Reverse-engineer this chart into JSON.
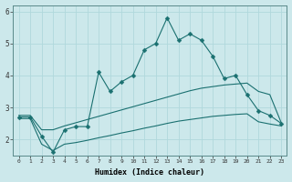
{
  "xlabel": "Humidex (Indice chaleur)",
  "background_color": "#cce8eb",
  "grid_color": "#b0d8dc",
  "line_color": "#1a7070",
  "xlim": [
    -0.5,
    23.5
  ],
  "ylim": [
    1.5,
    6.2
  ],
  "yticks": [
    2,
    3,
    4,
    5,
    6
  ],
  "xticks": [
    0,
    1,
    2,
    3,
    4,
    5,
    6,
    7,
    8,
    9,
    10,
    11,
    12,
    13,
    14,
    15,
    16,
    17,
    18,
    19,
    20,
    21,
    22,
    23
  ],
  "main_x": [
    0,
    1,
    2,
    3,
    4,
    5,
    6,
    7,
    8,
    9,
    10,
    11,
    12,
    13,
    14,
    15,
    16,
    17,
    18,
    19,
    20,
    21,
    22,
    23
  ],
  "main_y": [
    2.7,
    2.7,
    2.1,
    1.6,
    2.3,
    2.4,
    2.4,
    4.1,
    3.5,
    3.8,
    4.0,
    4.8,
    5.0,
    5.8,
    5.1,
    5.3,
    5.1,
    4.6,
    3.9,
    4.0,
    3.4,
    2.9,
    2.75,
    2.5
  ],
  "upper_x": [
    0,
    1,
    2,
    3,
    4,
    5,
    6,
    7,
    8,
    9,
    10,
    11,
    12,
    13,
    14,
    15,
    16,
    17,
    18,
    19,
    20,
    21,
    22,
    23
  ],
  "upper_y": [
    2.75,
    2.75,
    2.3,
    2.3,
    2.42,
    2.52,
    2.62,
    2.72,
    2.82,
    2.92,
    3.02,
    3.12,
    3.22,
    3.32,
    3.42,
    3.52,
    3.6,
    3.65,
    3.7,
    3.73,
    3.76,
    3.5,
    3.4,
    2.52
  ],
  "lower_x": [
    0,
    1,
    2,
    3,
    4,
    5,
    6,
    7,
    8,
    9,
    10,
    11,
    12,
    13,
    14,
    15,
    16,
    17,
    18,
    19,
    20,
    21,
    22,
    23
  ],
  "lower_y": [
    2.65,
    2.65,
    1.85,
    1.65,
    1.85,
    1.9,
    1.97,
    2.05,
    2.12,
    2.2,
    2.27,
    2.35,
    2.42,
    2.5,
    2.57,
    2.62,
    2.67,
    2.72,
    2.75,
    2.78,
    2.8,
    2.55,
    2.48,
    2.42
  ]
}
